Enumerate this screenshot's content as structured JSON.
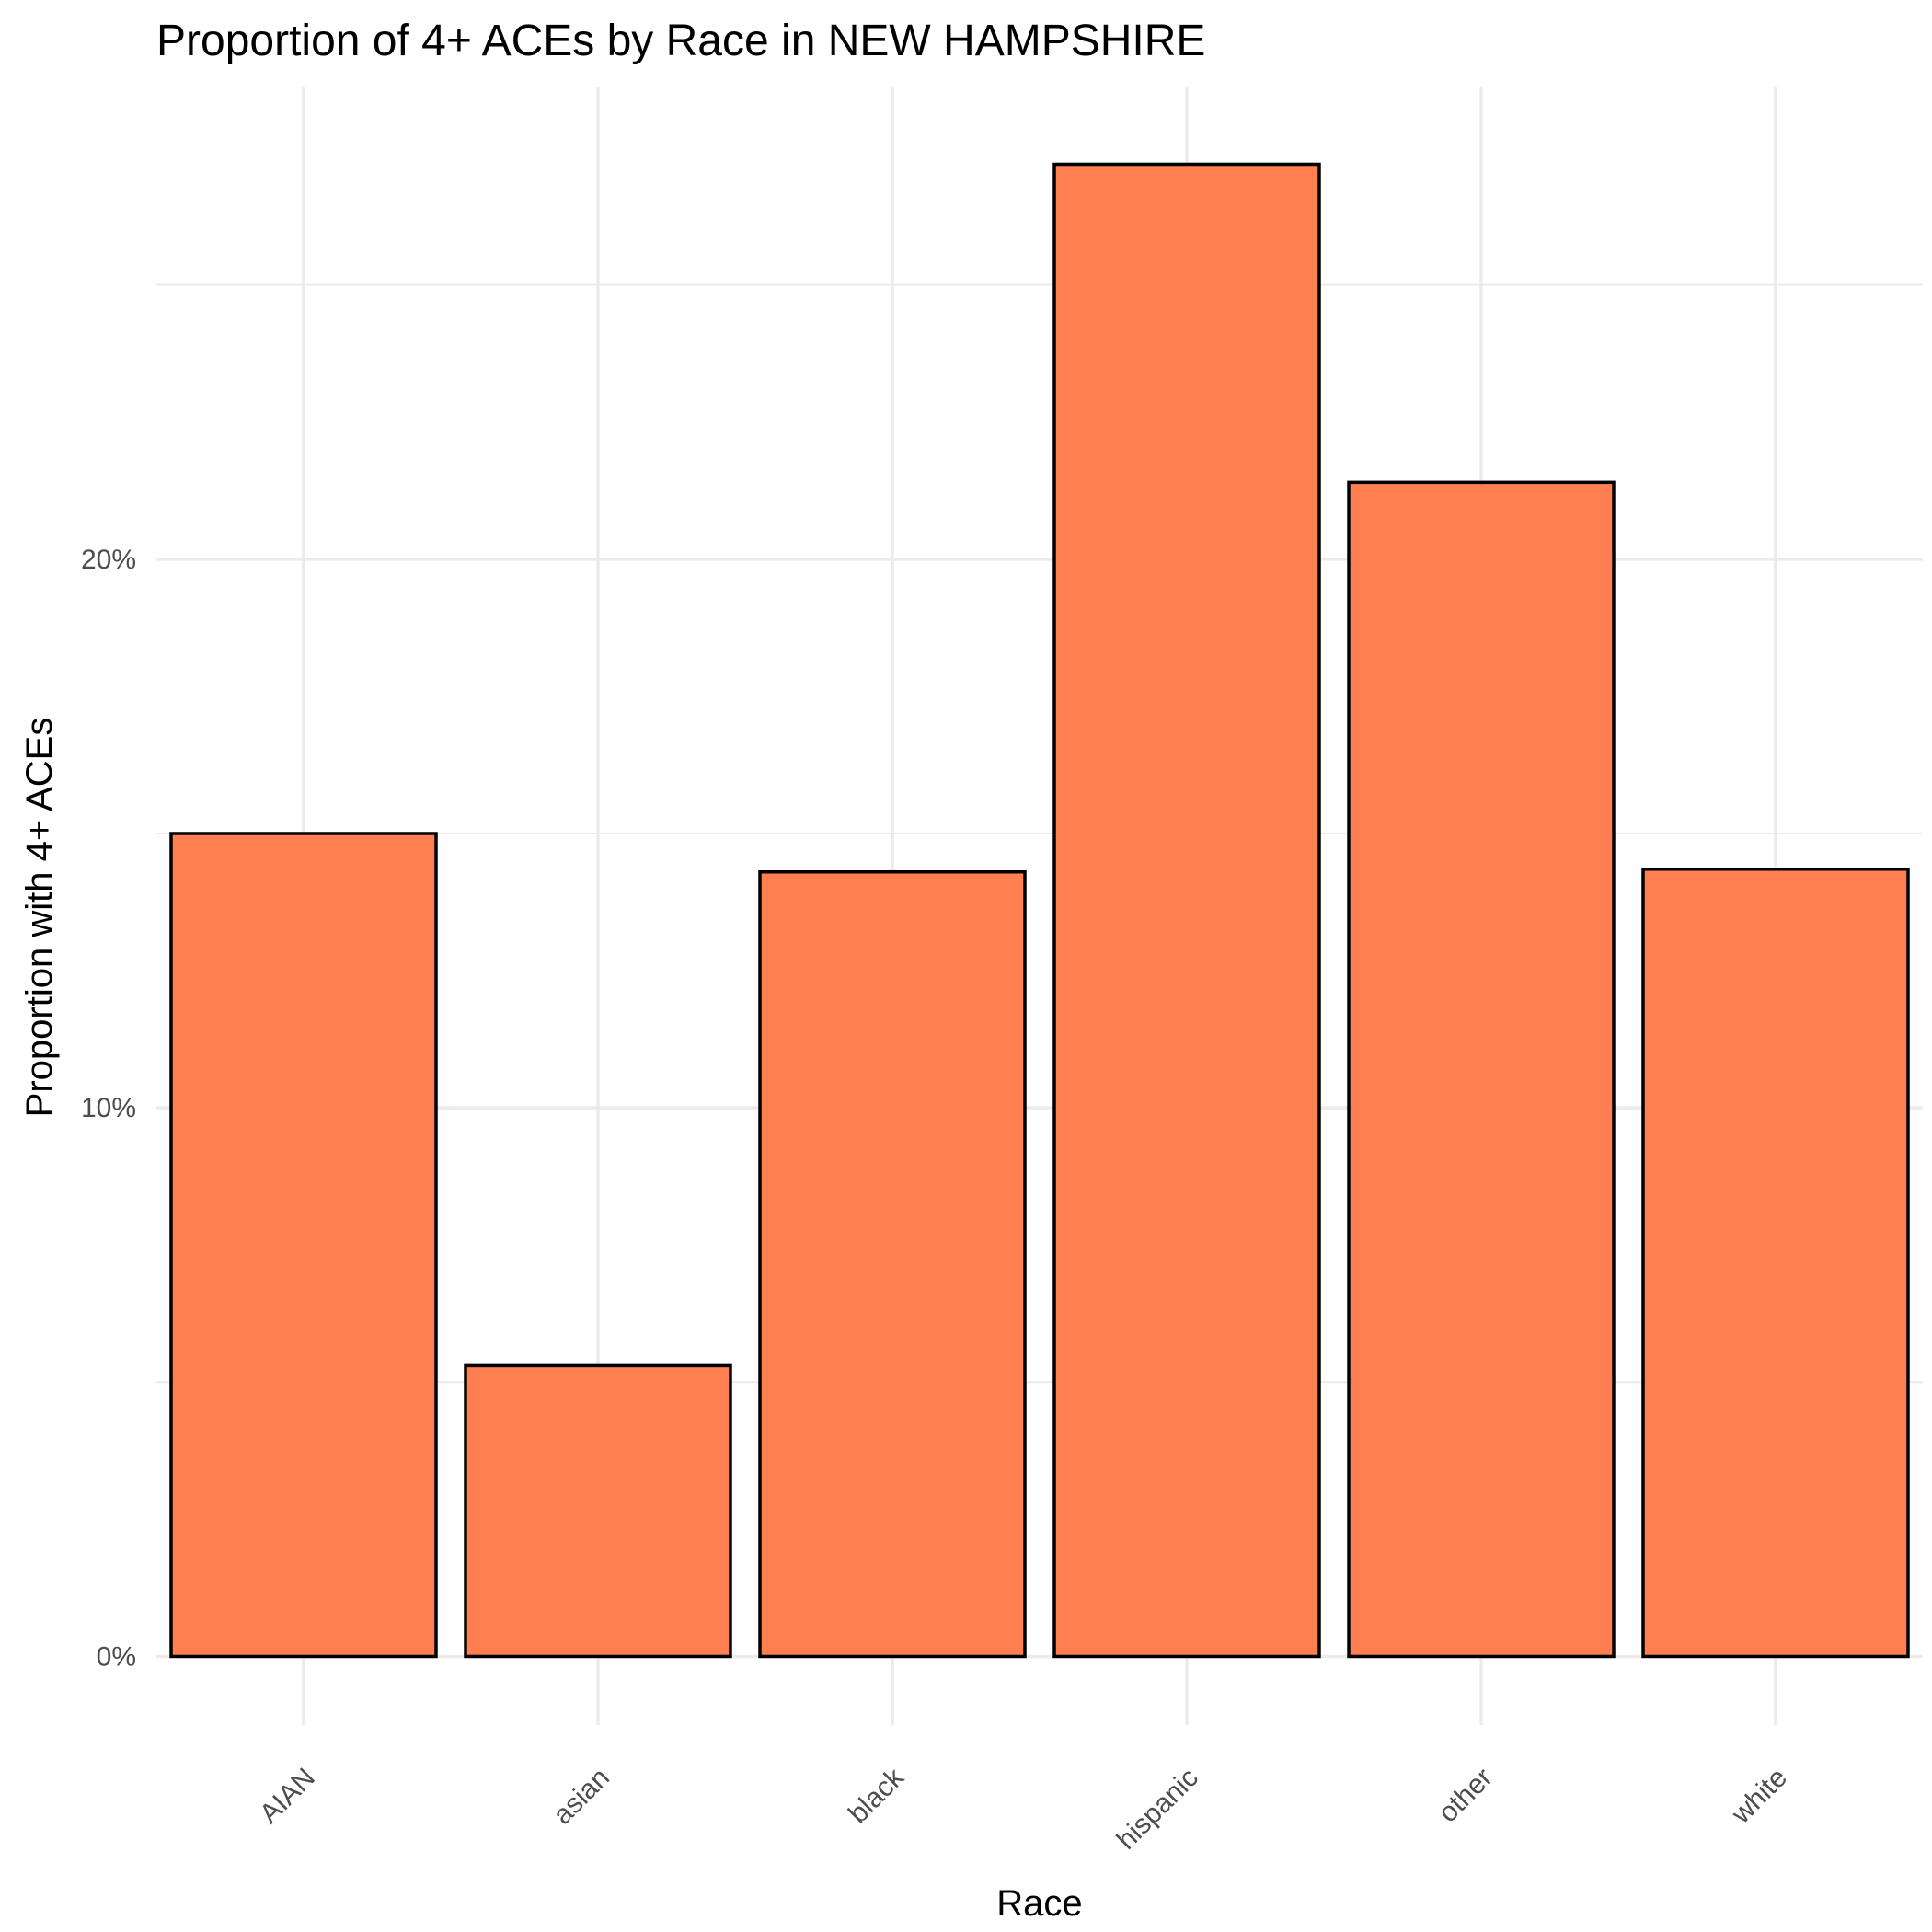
{
  "chart_data": {
    "type": "bar",
    "title": "Proportion of 4+ ACEs by Race in NEW HAMPSHIRE",
    "xlabel": "Race",
    "ylabel": "Proportion with 4+ ACEs",
    "categories": [
      "AIAN",
      "asian",
      "black",
      "hispanic",
      "other",
      "white"
    ],
    "values": [
      0.15,
      0.053,
      0.143,
      0.272,
      0.214,
      0.1435
    ],
    "ylim": [
      -0.0125,
      0.286
    ],
    "y_ticks": [
      0,
      0.1,
      0.2
    ],
    "y_tick_labels": [
      "0%",
      "10%",
      "20%"
    ],
    "y_minor_ticks": [
      0.05,
      0.15,
      0.25
    ],
    "grid": true,
    "legend": "none",
    "bar_color": "#FF7F50",
    "bar_outline": "#000000"
  }
}
